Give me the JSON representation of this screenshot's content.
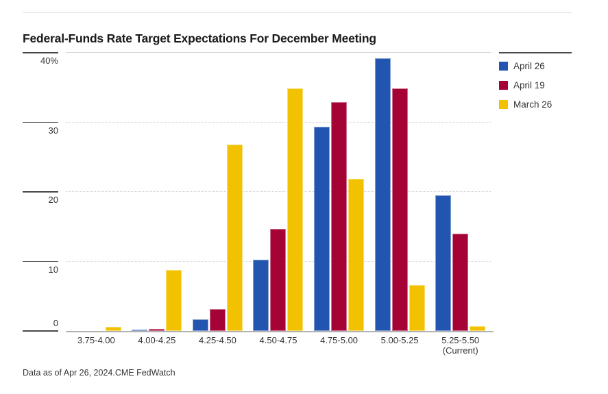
{
  "page": {
    "kind": "news-style grouped bar chart graphic"
  },
  "chart_data": {
    "type": "bar",
    "title": "Federal-Funds Rate Target Expectations For December Meeting",
    "footnote": "Data as of Apr 26, 2024.CME FedWatch",
    "categories": [
      "3.75-4.00",
      "4.00-4.25",
      "4.25-4.50",
      "4.50-4.75",
      "4.75-5.00",
      "5.00-5.25",
      "5.25-5.50"
    ],
    "category_sublabels": [
      "",
      "",
      "",
      "",
      "",
      "",
      "(Current)"
    ],
    "series": [
      {
        "name": "April 26",
        "color": "#2155b0",
        "values": [
          0,
          0.2,
          1.7,
          10.2,
          29.4,
          39.2,
          19.5
        ]
      },
      {
        "name": "April 19",
        "color": "#a50336",
        "values": [
          0,
          0.3,
          3.2,
          14.7,
          32.9,
          34.9,
          14.0
        ]
      },
      {
        "name": "March 26",
        "color": "#f2c200",
        "values": [
          0.6,
          8.8,
          26.8,
          34.9,
          21.9,
          6.6,
          0.7
        ]
      }
    ],
    "xlabel": "",
    "ylabel": "",
    "ylim": [
      0,
      40
    ],
    "yticks": [
      {
        "label": "40%",
        "value": 40
      },
      {
        "label": "30",
        "value": 30
      },
      {
        "label": "20",
        "value": 20
      },
      {
        "label": "10",
        "value": 10
      },
      {
        "label": "0",
        "value": 0
      }
    ],
    "grid": "horizontal, dotted (top line solid)",
    "legend_position": "top-right",
    "units": "percent probability"
  }
}
